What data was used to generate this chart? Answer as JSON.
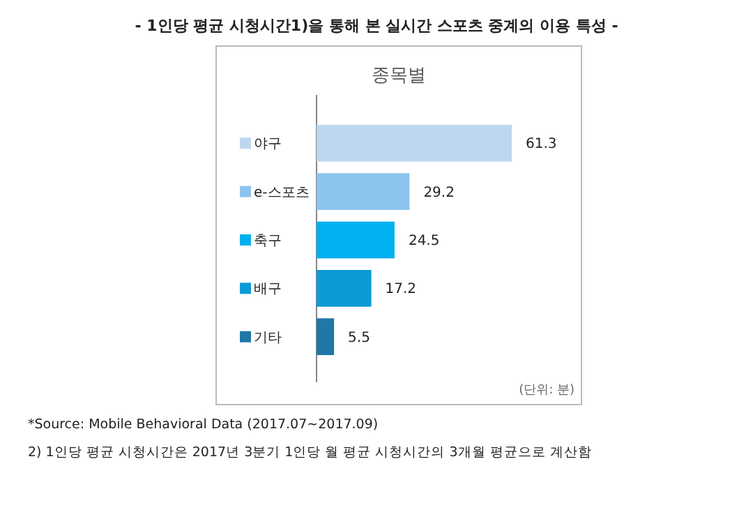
{
  "chart_data": {
    "type": "bar",
    "orientation": "horizontal",
    "title": "- 1인당 평균 시청시간1)을 통해 본 실시간 스포츠 중계의 이용 특성 -",
    "subtitle": "종목별",
    "categories": [
      "야구",
      "e-스포츠",
      "축구",
      "배구",
      "기타"
    ],
    "values": [
      61.3,
      29.2,
      24.5,
      17.2,
      5.5
    ],
    "colors": [
      "#bdd7ee",
      "#8cc4ee",
      "#00b0f0",
      "#0c9ad6",
      "#1f78a8"
    ],
    "data_labels": true,
    "annotations": [
      "(단위: 분)",
      "*Source: Mobile Behavioral Data (2017.07~2017.09)",
      "2) 1인당 평균 시청시간은 2017년 3분기 1인당 월 평균 시청시간의 3개월 평균으로 계산함"
    ]
  }
}
